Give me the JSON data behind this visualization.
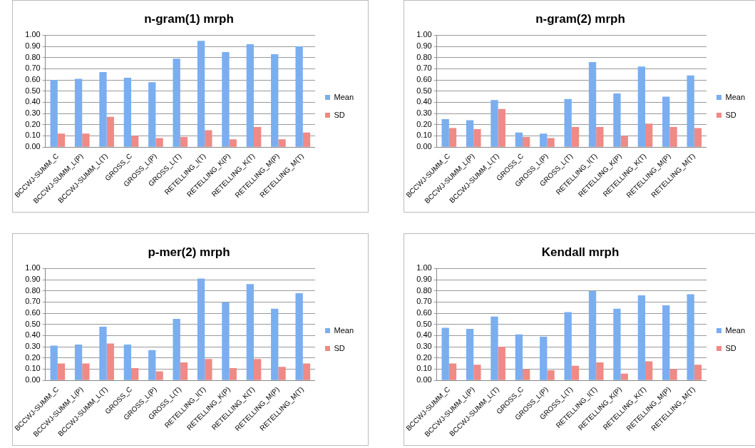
{
  "chart_data": [
    {
      "type": "bar",
      "title": "n-gram(1) mrph",
      "categories": [
        "BCCWJ-SUMM_C",
        "BCCWJ-SUMM_L(P)",
        "BCCWJ-SUMM_L(T)",
        "GROSS_C",
        "GROSS_L(P)",
        "GROSS_L(T)",
        "RETELLING_I(T)",
        "RETELLING_K(P)",
        "RETELLING_K(T)",
        "RETELLING_M(P)",
        "RETELLING_M(T)"
      ],
      "series": [
        {
          "name": "Mean",
          "color": "#7aaef0",
          "values": [
            0.6,
            0.61,
            0.67,
            0.62,
            0.58,
            0.79,
            0.95,
            0.85,
            0.92,
            0.83,
            0.9
          ]
        },
        {
          "name": "SD",
          "color": "#ef8a86",
          "values": [
            0.12,
            0.12,
            0.27,
            0.1,
            0.08,
            0.09,
            0.15,
            0.07,
            0.18,
            0.07,
            0.13
          ]
        }
      ],
      "ylim": [
        0,
        1
      ],
      "yticks": [
        {
          "value": 0,
          "label": "0.00"
        },
        {
          "value": 0.1,
          "label": "0.10"
        },
        {
          "value": 0.2,
          "label": "0.20"
        },
        {
          "value": 0.3,
          "label": "0.30"
        },
        {
          "value": 0.4,
          "label": "0.40"
        },
        {
          "value": 0.5,
          "label": "0.50"
        },
        {
          "value": 0.6,
          "label": "0.60"
        },
        {
          "value": 0.7,
          "label": "0.70"
        },
        {
          "value": 0.8,
          "label": "0.80"
        },
        {
          "value": 0.9,
          "label": "0.90"
        },
        {
          "value": 1,
          "label": "1.00"
        }
      ],
      "grid": "y",
      "legend": "right"
    },
    {
      "type": "bar",
      "title": "n-gram(2) mrph",
      "categories": [
        "BCCWJ-SUMM_C",
        "BCCWJ-SUMM_L(P)",
        "BCCWJ-SUMM_L(T)",
        "GROSS_C",
        "GROSS_L(P)",
        "GROSS_L(T)",
        "RETELLING_I(T)",
        "RETELLING_K(P)",
        "RETELLING_K(T)",
        "RETELLING_M(P)",
        "RETELLING_M(T)"
      ],
      "series": [
        {
          "name": "Mean",
          "color": "#7aaef0",
          "values": [
            0.25,
            0.24,
            0.42,
            0.13,
            0.12,
            0.43,
            0.76,
            0.48,
            0.72,
            0.45,
            0.64
          ]
        },
        {
          "name": "SD",
          "color": "#ef8a86",
          "values": [
            0.17,
            0.16,
            0.34,
            0.09,
            0.08,
            0.18,
            0.18,
            0.1,
            0.21,
            0.18,
            0.17
          ]
        }
      ],
      "ylim": [
        0,
        1
      ],
      "yticks": [
        {
          "value": 0,
          "label": "0.00"
        },
        {
          "value": 0.1,
          "label": "0.10"
        },
        {
          "value": 0.2,
          "label": "0.20"
        },
        {
          "value": 0.3,
          "label": "0.30"
        },
        {
          "value": 0.4,
          "label": "0.40"
        },
        {
          "value": 0.5,
          "label": "0.50"
        },
        {
          "value": 0.6,
          "label": "0.60"
        },
        {
          "value": 0.7,
          "label": "0.70"
        },
        {
          "value": 0.8,
          "label": "0.80"
        },
        {
          "value": 0.9,
          "label": "0.90"
        },
        {
          "value": 1,
          "label": "1.00"
        }
      ],
      "grid": "y",
      "legend": "right"
    },
    {
      "type": "bar",
      "title": "p-mer(2) mrph",
      "categories": [
        "BCCWJ-SUMM_C",
        "BCCWJ-SUMM_L(P)",
        "BCCWJ-SUMM_L(T)",
        "GROSS_C",
        "GROSS_L(P)",
        "GROSS_L(T)",
        "RETELLING_I(T)",
        "RETELLING_K(P)",
        "RETELLING_K(T)",
        "RETELLING_M(P)",
        "RETELLING_M(T)"
      ],
      "series": [
        {
          "name": "Mean",
          "color": "#7aaef0",
          "values": [
            0.31,
            0.32,
            0.48,
            0.32,
            0.27,
            0.55,
            0.91,
            0.7,
            0.86,
            0.64,
            0.78
          ]
        },
        {
          "name": "SD",
          "color": "#ef8a86",
          "values": [
            0.15,
            0.15,
            0.33,
            0.11,
            0.08,
            0.16,
            0.19,
            0.11,
            0.19,
            0.12,
            0.15
          ]
        }
      ],
      "ylim": [
        0,
        1
      ],
      "yticks": [
        {
          "value": 0,
          "label": "0.00"
        },
        {
          "value": 0.1,
          "label": "0.10"
        },
        {
          "value": 0.2,
          "label": "0.20"
        },
        {
          "value": 0.3,
          "label": "0.30"
        },
        {
          "value": 0.4,
          "label": "0.40"
        },
        {
          "value": 0.5,
          "label": "0.50"
        },
        {
          "value": 0.6,
          "label": "0.60"
        },
        {
          "value": 0.7,
          "label": "0.70"
        },
        {
          "value": 0.8,
          "label": "0.80"
        },
        {
          "value": 0.9,
          "label": "0.90"
        },
        {
          "value": 1,
          "label": "1.00"
        }
      ],
      "grid": "y",
      "legend": "right"
    },
    {
      "type": "bar",
      "title": "Kendall mrph",
      "categories": [
        "BCCWJ-SUMM_C",
        "BCCWJ-SUMM_L(P)",
        "BCCWJ-SUMM_L(T)",
        "GROSS_C",
        "GROSS_L(P)",
        "GROSS_L(T)",
        "RETELLING_I(T)",
        "RETELLING_K(P)",
        "RETELLING_K(T)",
        "RETELLING_M(P)",
        "RETELLING_M(T)"
      ],
      "series": [
        {
          "name": "Mean",
          "color": "#7aaef0",
          "values": [
            0.47,
            0.46,
            0.57,
            0.41,
            0.39,
            0.61,
            0.8,
            0.64,
            0.76,
            0.67,
            0.77
          ]
        },
        {
          "name": "SD",
          "color": "#ef8a86",
          "values": [
            0.15,
            0.14,
            0.3,
            0.1,
            0.09,
            0.13,
            0.16,
            0.06,
            0.17,
            0.1,
            0.14
          ]
        }
      ],
      "ylim": [
        0,
        1
      ],
      "yticks": [
        {
          "value": 0,
          "label": "0.00"
        },
        {
          "value": 0.1,
          "label": "0.10"
        },
        {
          "value": 0.2,
          "label": "0.20"
        },
        {
          "value": 0.3,
          "label": "0.30"
        },
        {
          "value": 0.4,
          "label": "0.40"
        },
        {
          "value": 0.5,
          "label": "0.50"
        },
        {
          "value": 0.6,
          "label": "0.60"
        },
        {
          "value": 0.7,
          "label": "0.70"
        },
        {
          "value": 0.8,
          "label": "0.80"
        },
        {
          "value": 0.9,
          "label": "0.90"
        },
        {
          "value": 1,
          "label": "1.00"
        }
      ],
      "grid": "y",
      "legend": "right"
    }
  ]
}
